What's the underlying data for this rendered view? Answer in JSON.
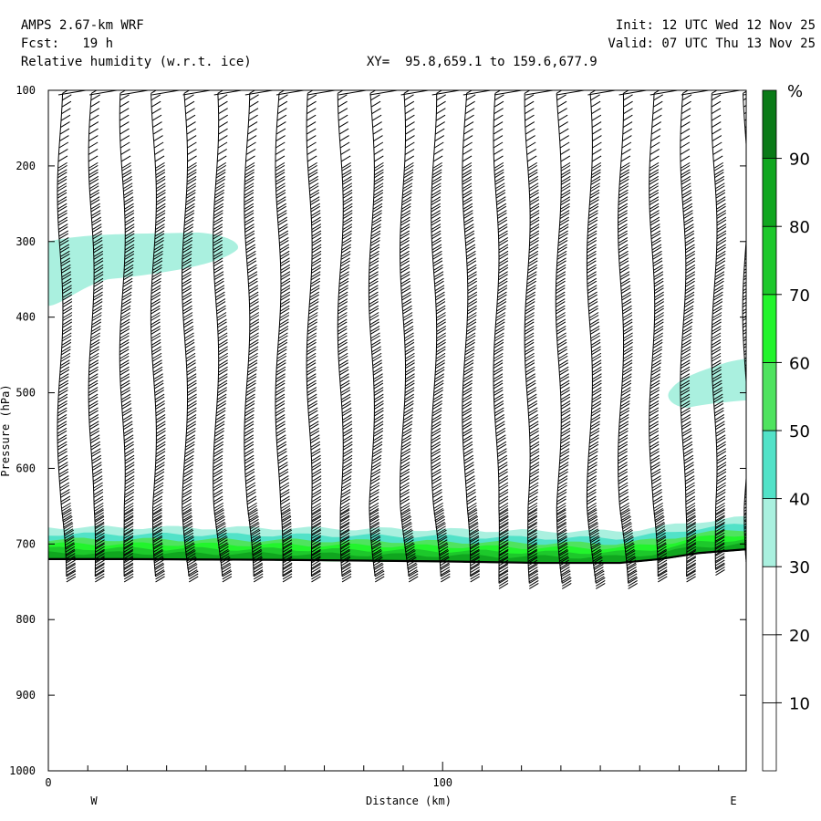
{
  "header": {
    "model": "AMPS 2.67-km WRF",
    "forecast_label": "Fcst:",
    "forecast_value": "19 h",
    "field": "Relative humidity (w.r.t. ice)",
    "xy_label": "XY=",
    "xy_value": "95.8,659.1 to 159.6,677.9",
    "init_label": "Init:",
    "init_value": "12 UTC Wed 12 Nov 25",
    "valid_label": "Valid:",
    "valid_value": "07 UTC Thu 13 Nov 25"
  },
  "chart_data": {
    "type": "cross-section",
    "ylabel": "Pressure (hPa)",
    "xlabel": "Distance (km)",
    "x_left_label": "W",
    "x_right_label": "E",
    "xlim": [
      0,
      177
    ],
    "ylim": [
      100,
      1000
    ],
    "y_reversed": true,
    "x_ticks": [
      0,
      100
    ],
    "y_ticks": [
      100,
      200,
      300,
      400,
      500,
      600,
      700,
      800,
      900,
      1000
    ],
    "surface_pressure": [
      {
        "x": 0,
        "p": 720
      },
      {
        "x": 20,
        "p": 720
      },
      {
        "x": 60,
        "p": 721
      },
      {
        "x": 100,
        "p": 723
      },
      {
        "x": 125,
        "p": 725
      },
      {
        "x": 145,
        "p": 725
      },
      {
        "x": 155,
        "p": 720
      },
      {
        "x": 165,
        "p": 712
      },
      {
        "x": 177,
        "p": 707
      }
    ],
    "rh_shading": {
      "units": "%",
      "levels": [
        10,
        20,
        30,
        40,
        50,
        60,
        70,
        80,
        90
      ],
      "colors": [
        "#ffffff",
        "#ffffff",
        "#ffffff",
        "#aaf0df",
        "#52e2c8",
        "#4fe35f",
        "#22f42c",
        "#1dc82b",
        "#10a61f",
        "#0a7a17"
      ],
      "regions": [
        {
          "x_range": [
            0,
            48
          ],
          "p_range": [
            290,
            385
          ],
          "rh_class": "30-40"
        },
        {
          "x_range": [
            158,
            177
          ],
          "p_range": [
            455,
            520
          ],
          "rh_class": "30-40"
        },
        {
          "x_range": [
            0,
            177
          ],
          "p_range": [
            680,
            720
          ],
          "rh_class": "30-90",
          "note_free": true
        }
      ]
    },
    "wind_columns": {
      "count": 23,
      "x_start": 3,
      "x_step": 7.9,
      "p_top": 100,
      "barb_direction": "westerly"
    }
  },
  "colors": {
    "frame": "#000000",
    "background": "#ffffff"
  }
}
